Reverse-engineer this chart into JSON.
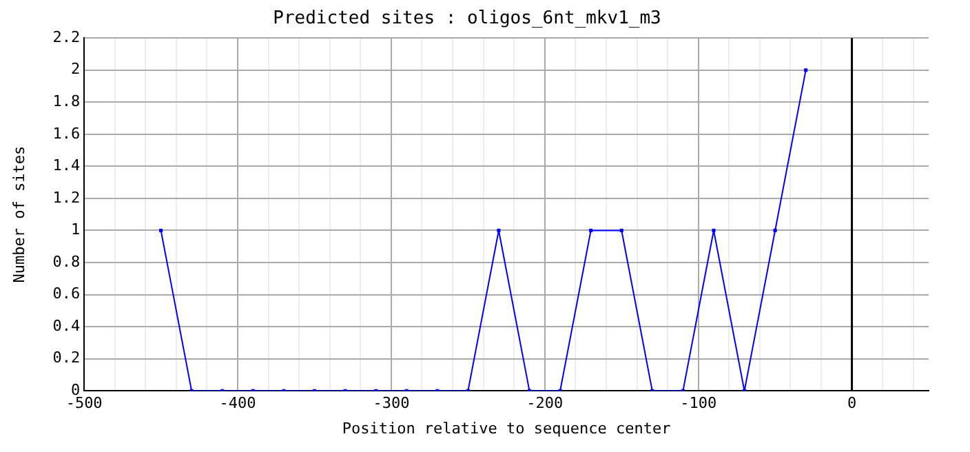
{
  "chart_data": {
    "type": "line",
    "title": "Predicted sites : oligos_6nt_mkv1_m3",
    "xlabel": "Position relative to sequence center",
    "ylabel": "Number of sites",
    "x": [
      -450,
      -430,
      -410,
      -390,
      -370,
      -350,
      -330,
      -310,
      -290,
      -270,
      -250,
      -230,
      -210,
      -190,
      -170,
      -150,
      -130,
      -110,
      -90,
      -70,
      -50,
      -30
    ],
    "series": [
      {
        "color": "#0000ff",
        "values": [
          1,
          0,
          0,
          0,
          0,
          0,
          0,
          0,
          0,
          0,
          0,
          1,
          0,
          0,
          1,
          1,
          0,
          0,
          1,
          0,
          1,
          2
        ]
      }
    ],
    "xlim": [
      -500,
      50
    ],
    "xticks": [
      -500,
      {
        "value": -480,
        "label": null
      },
      {
        "value": -460,
        "label": null
      },
      {
        "value": -440,
        "label": null
      },
      {
        "value": -420,
        "label": null
      },
      -400,
      {
        "value": -380,
        "label": null
      },
      {
        "value": -360,
        "label": null
      },
      {
        "value": -340,
        "label": null
      },
      {
        "value": -320,
        "label": null
      },
      -300,
      {
        "value": -280,
        "label": null
      },
      {
        "value": -260,
        "label": null
      },
      {
        "value": -240,
        "label": null
      },
      {
        "value": -220,
        "label": null
      },
      -200,
      {
        "value": -180,
        "label": null
      },
      {
        "value": -160,
        "label": null
      },
      {
        "value": -140,
        "label": null
      },
      {
        "value": -120,
        "label": null
      },
      -100,
      {
        "value": -80,
        "label": null
      },
      {
        "value": -60,
        "label": null
      },
      {
        "value": -40,
        "label": null
      },
      {
        "value": -20,
        "label": null
      },
      0,
      {
        "value": 20,
        "label": null
      },
      {
        "value": 40,
        "label": null
      }
    ],
    "ylim": [
      0,
      2.2
    ],
    "yticks": [
      0,
      0.2,
      0.4,
      0.6,
      0.8,
      1,
      1.2,
      1.4,
      1.6,
      1.8,
      2,
      2.2
    ],
    "ref_lines": [
      {
        "axis": "x",
        "value": 0,
        "color": "#000000"
      }
    ],
    "grid": true,
    "marker": "square",
    "line_style": "solid",
    "legend": false
  }
}
